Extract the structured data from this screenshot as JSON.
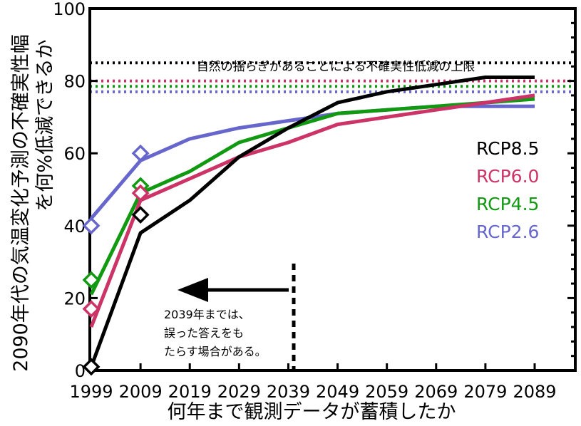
{
  "chart_data": {
    "type": "line",
    "title": "",
    "xlabel": "何年まで観測データが蓄積したか",
    "ylabel_lines": [
      "2090年代の気温変化予測の不確実性幅",
      "を何%低減できるか"
    ],
    "x": [
      1999,
      2009,
      2019,
      2029,
      2039,
      2049,
      2059,
      2069,
      2079,
      2089
    ],
    "xlim": [
      1999,
      2089
    ],
    "ylim": [
      0,
      100
    ],
    "yticks": [
      0,
      20,
      40,
      60,
      80,
      100
    ],
    "grid": false,
    "legend_position": "right",
    "series": [
      {
        "name": "RCP8.5",
        "color": "#000000",
        "values": [
          1,
          38,
          47,
          59,
          67,
          74,
          77,
          79,
          81,
          81
        ],
        "markers": [
          1,
          43
        ],
        "limit": 85
      },
      {
        "name": "RCP6.0",
        "color": "#cc3366",
        "values": [
          12,
          47,
          53,
          59,
          63,
          68,
          70,
          72,
          74,
          76
        ],
        "markers": [
          17,
          49
        ],
        "limit": 80
      },
      {
        "name": "RCP4.5",
        "color": "#119911",
        "values": [
          21,
          49,
          55,
          63,
          67,
          71,
          72,
          73,
          74,
          75
        ],
        "markers": [
          25,
          51
        ],
        "limit": 78.5
      },
      {
        "name": "RCP2.6",
        "color": "#6666cc",
        "values": [
          42,
          58,
          64,
          67,
          69,
          71,
          72,
          73,
          73,
          73
        ],
        "markers": [
          40,
          60
        ],
        "limit": 77
      }
    ],
    "limit_label": "自然の揺らぎがあることによる不確実性低減の上限",
    "annotation_lines": [
      "2039年までは、",
      "誤った答えをも",
      "たらす場合がある。"
    ],
    "annotation_cutoff_year": 2039
  }
}
